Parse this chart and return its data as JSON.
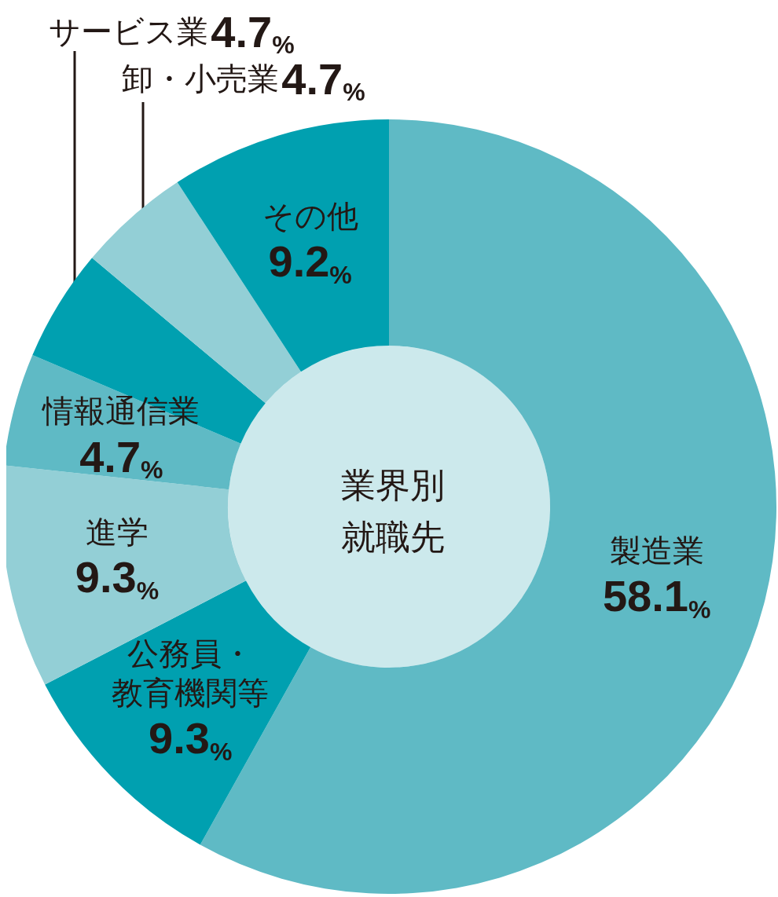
{
  "chart_data": {
    "type": "donut",
    "title": "業界別就職先",
    "categories": [
      "製造業",
      "公務員・教育機関等",
      "進学",
      "情報通信業",
      "サービス業",
      "卸・小売業",
      "その他"
    ],
    "values": [
      58.1,
      9.3,
      9.3,
      4.7,
      4.7,
      4.7,
      9.2
    ],
    "value_labels": [
      "58.1%",
      "9.3%",
      "9.3%",
      "4.7%",
      "4.7%",
      "4.7%",
      "9.2%"
    ],
    "colors": [
      "#5fbac5",
      "#00a0b0",
      "#93cfd6",
      "#5fbac5",
      "#00a0b0",
      "#93cfd6",
      "#00a0b0"
    ],
    "legend": false
  }
}
